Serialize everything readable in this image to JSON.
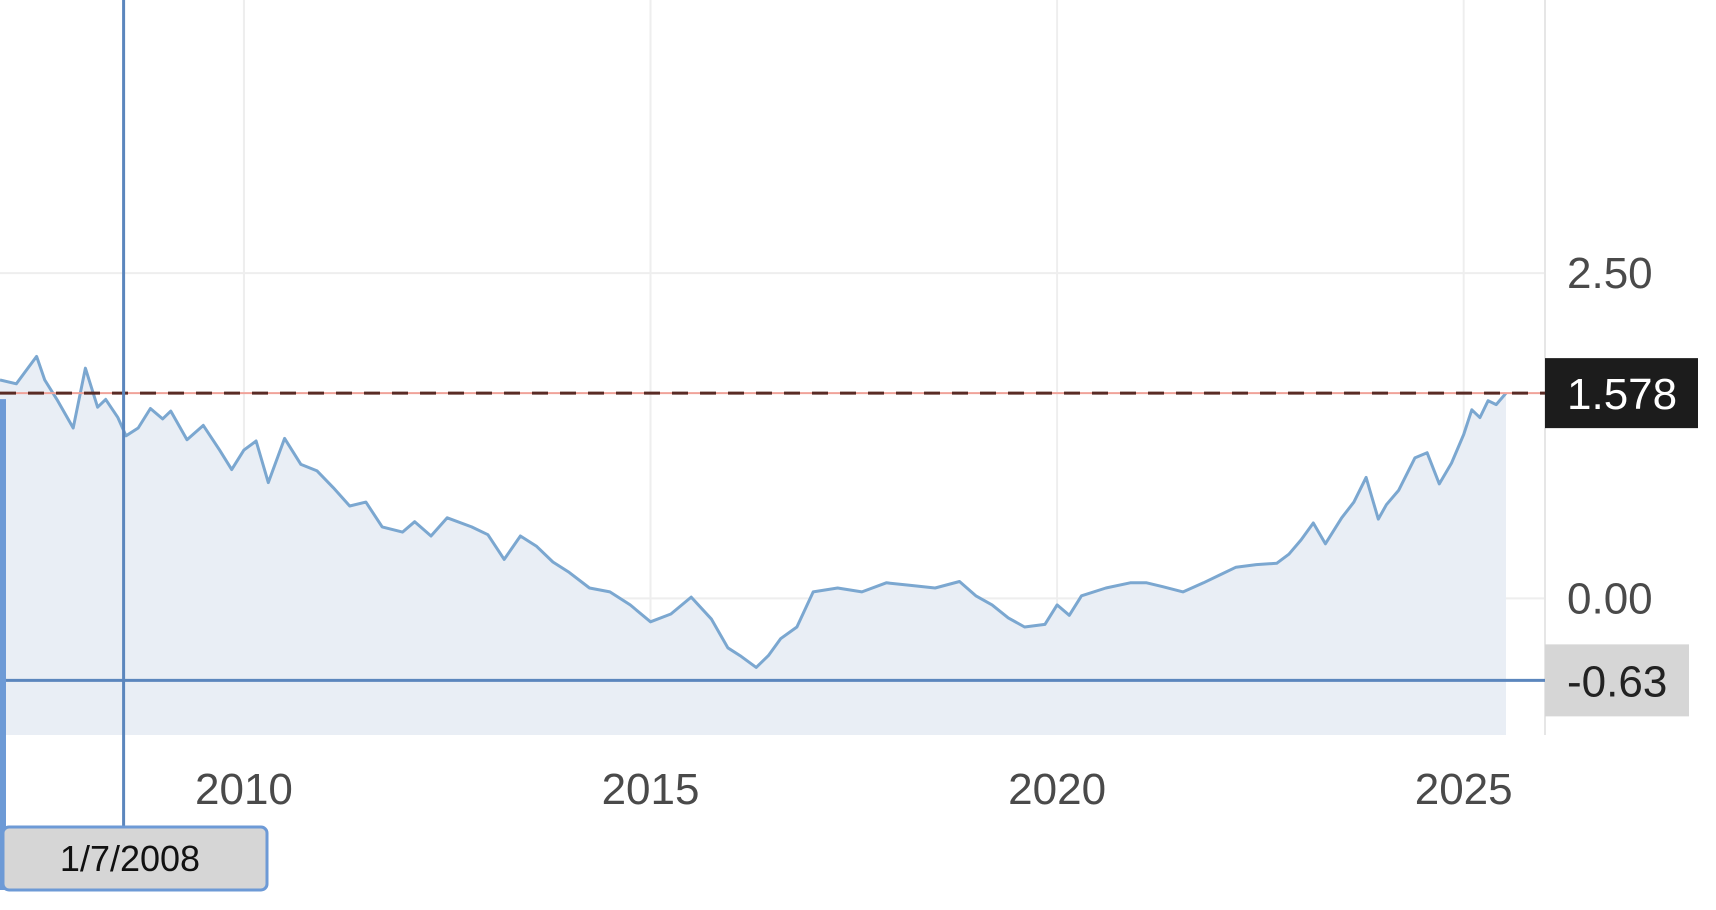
{
  "colors": {
    "line": "#7ba7d0",
    "area_fill": "#e9eef5",
    "grid": "#eeeeee",
    "crosshair": "#5b86bd",
    "reference_dash": "#5a2b25",
    "reference_solid": "#f0a39a",
    "last_value_bg": "#1c1c1c",
    "last_value_text": "#ffffff",
    "crosshair_label_bg": "#d6d6d6",
    "tick_text": "#4a4a4a"
  },
  "chart_data": {
    "type": "area",
    "title": "",
    "xlabel": "",
    "ylabel": "",
    "xlim": [
      2007.0,
      2026.0
    ],
    "ylim": [
      -1.05,
      4.6
    ],
    "grid": true,
    "legend": "none",
    "x_ticks": [
      "2010",
      "2015",
      "2020",
      "2025"
    ],
    "y_ticks": [
      "2.50",
      "0.00"
    ],
    "reference_line": {
      "value": 1.578,
      "label": "1.578"
    },
    "crosshair": {
      "x_label": "1/7/2008",
      "y_label": "-0.63",
      "x_value": 2008.52,
      "y_value": -0.63
    },
    "series": [
      {
        "x": [
          2007.0,
          2007.2,
          2007.45,
          2007.55,
          2007.7,
          2007.9,
          2008.05,
          2008.2,
          2008.3,
          2008.45,
          2008.55,
          2008.7,
          2008.85,
          2009.0,
          2009.1,
          2009.3,
          2009.5,
          2009.7,
          2009.85,
          2010.0,
          2010.15,
          2010.3,
          2010.5,
          2010.7,
          2010.9,
          2011.1,
          2011.3,
          2011.5,
          2011.7,
          2011.95,
          2012.1,
          2012.3,
          2012.5,
          2012.8,
          2013.0,
          2013.2,
          2013.4,
          2013.6,
          2013.8,
          2014.0,
          2014.25,
          2014.5,
          2014.75,
          2015.0,
          2015.25,
          2015.5,
          2015.75,
          2015.95,
          2016.1,
          2016.3,
          2016.45,
          2016.6,
          2016.8,
          2017.0,
          2017.3,
          2017.6,
          2017.9,
          2018.2,
          2018.5,
          2018.8,
          2019.0,
          2019.2,
          2019.4,
          2019.6,
          2019.85,
          2020.0,
          2020.15,
          2020.3,
          2020.6,
          2020.9,
          2021.1,
          2021.3,
          2021.55,
          2021.8,
          2022.0,
          2022.2,
          2022.45,
          2022.7,
          2022.85,
          2023.0,
          2023.15,
          2023.3,
          2023.5,
          2023.65,
          2023.8,
          2023.95,
          2024.05,
          2024.2,
          2024.4,
          2024.55,
          2024.7,
          2024.85,
          2025.0,
          2025.1,
          2025.2,
          2025.3,
          2025.4,
          2025.52
        ],
        "values": [
          1.68,
          1.65,
          1.86,
          1.68,
          1.53,
          1.31,
          1.77,
          1.47,
          1.53,
          1.39,
          1.25,
          1.31,
          1.46,
          1.38,
          1.44,
          1.22,
          1.33,
          1.14,
          0.99,
          1.14,
          1.21,
          0.89,
          1.23,
          1.03,
          0.98,
          0.85,
          0.71,
          0.74,
          0.55,
          0.51,
          0.59,
          0.48,
          0.62,
          0.55,
          0.49,
          0.3,
          0.48,
          0.4,
          0.28,
          0.2,
          0.08,
          0.05,
          -0.05,
          -0.18,
          -0.12,
          0.01,
          -0.16,
          -0.38,
          -0.44,
          -0.53,
          -0.44,
          -0.31,
          -0.22,
          0.05,
          0.08,
          0.05,
          0.12,
          0.1,
          0.08,
          0.13,
          0.02,
          -0.05,
          -0.15,
          -0.22,
          -0.2,
          -0.05,
          -0.13,
          0.02,
          0.08,
          0.12,
          0.12,
          0.09,
          0.05,
          0.12,
          0.18,
          0.24,
          0.26,
          0.27,
          0.34,
          0.45,
          0.58,
          0.42,
          0.62,
          0.74,
          0.93,
          0.61,
          0.72,
          0.83,
          1.08,
          1.12,
          0.88,
          1.04,
          1.26,
          1.45,
          1.39,
          1.52,
          1.49,
          1.578
        ]
      }
    ]
  }
}
